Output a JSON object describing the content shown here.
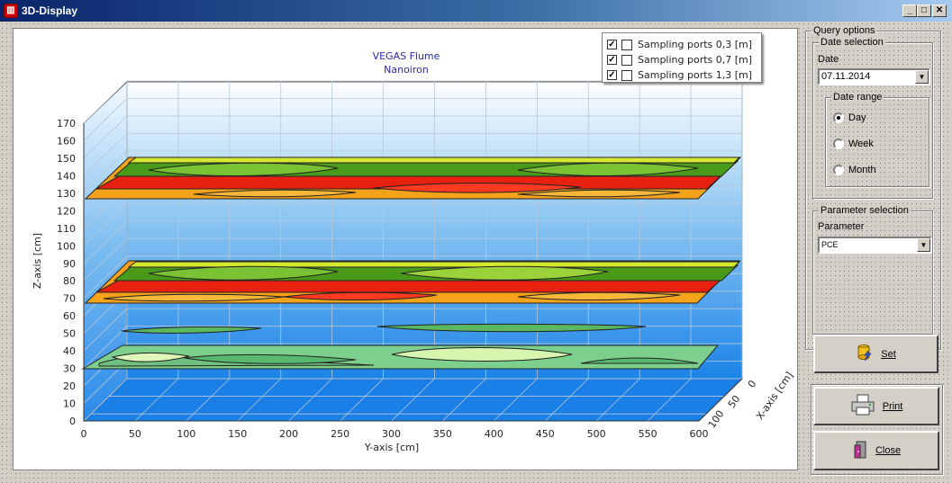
{
  "window": {
    "title": "3D-Display"
  },
  "chart": {
    "title_line1": "VEGAS Flume",
    "title_line2": "Nanoiron",
    "z_axis_label": "Z-axis [cm]",
    "y_axis_label": "Y-axis [cm]",
    "x_axis_label": "X-axis [cm]",
    "legend": [
      {
        "label": "Sampling ports 0,3 [m]",
        "checked": true
      },
      {
        "label": "Sampling ports 0,7 [m]",
        "checked": true
      },
      {
        "label": "Sampling ports 1,3 [m]",
        "checked": true
      }
    ]
  },
  "chart_data": {
    "type": "surface",
    "title": "VEGAS Flume Nanoiron",
    "xlabel": "Y-axis [cm]",
    "ylabel": "Z-axis [cm]",
    "zlabel": "X-axis [cm]",
    "z_ticks": [
      0,
      10,
      20,
      30,
      40,
      50,
      60,
      70,
      80,
      90,
      100,
      110,
      120,
      130,
      140,
      150,
      160,
      170
    ],
    "y_ticks": [
      0,
      50,
      100,
      150,
      200,
      250,
      300,
      350,
      400,
      450,
      500,
      550,
      600
    ],
    "x_ticks": [
      0,
      50,
      100
    ],
    "layers": [
      {
        "name": "Sampling ports 0,3 [m]",
        "z": 30
      },
      {
        "name": "Sampling ports 0,7 [m]",
        "z": 70
      },
      {
        "name": "Sampling ports 1,3 [m]",
        "z": 130
      }
    ]
  },
  "query": {
    "group_label": "Query options",
    "date_group": "Date selection",
    "date_label": "Date",
    "date_value": "07.11.2014",
    "range_group": "Date range",
    "ranges": [
      {
        "label": "Day",
        "selected": true
      },
      {
        "label": "Week",
        "selected": false
      },
      {
        "label": "Month",
        "selected": false
      }
    ],
    "param_group": "Parameter selection",
    "param_label": "Parameter",
    "param_value": "PCE"
  },
  "buttons": {
    "set": "Set",
    "print": "Print",
    "close": "Close"
  }
}
